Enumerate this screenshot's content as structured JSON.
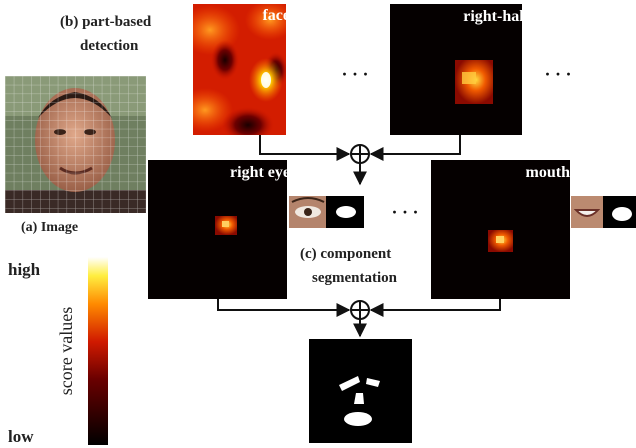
{
  "labels": {
    "part_based_line1": "(b) part-based",
    "part_based_line2": "detection",
    "image_caption": "(a) Image",
    "component_line1": "(c) component",
    "component_line2": "segmentation",
    "scale_high": "high",
    "scale_low": "low",
    "scale_axis": "score values"
  },
  "maps": {
    "face": "face",
    "right_half": "right-half",
    "right_eye": "right eye",
    "mouth": "mouth"
  },
  "ellipsis": "· · ·",
  "combine_symbol": "⊕",
  "colors": {
    "map_background": "#050000",
    "arrow": "#111111",
    "heat_low": "#000000",
    "heat_mid": "#cc1a00",
    "heat_high": "#ffffff"
  }
}
